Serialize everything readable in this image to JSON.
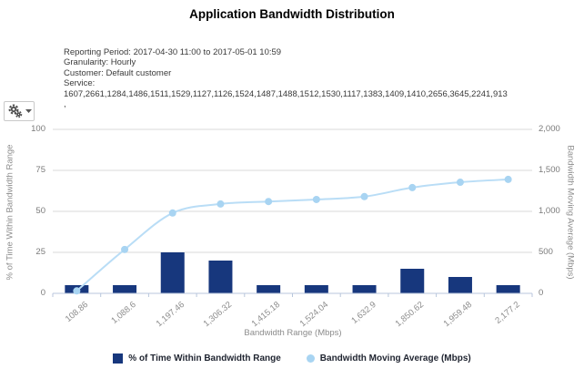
{
  "title": "Application Bandwidth Distribution",
  "info": {
    "reporting_period": "Reporting Period: 2017-04-30 11:00 to 2017-05-01 10:59",
    "granularity": "Granularity: Hourly",
    "customer": "Customer: Default customer",
    "service_label": "Service:",
    "service_values": "1607,2661,1284,1486,1511,1529,1127,1126,1524,1487,1488,1512,1530,1117,1383,1409,1410,2656,3645,2241,913",
    "service_trailing": ","
  },
  "toolbar": {
    "gear_icon": "settings-gears-dropdown"
  },
  "chart_data": {
    "type": "bar",
    "categories": [
      "108.86",
      "1,088.6",
      "1,197.46",
      "1,306.32",
      "1,415.18",
      "1,524.04",
      "1,632.9",
      "1,850.62",
      "1,959.48",
      "2,177.2"
    ],
    "series": [
      {
        "name": "% of Time Within Bandwidth Range",
        "type": "bar",
        "axis": "left",
        "values": [
          5,
          5,
          25,
          20,
          5,
          5,
          5,
          15,
          10,
          5
        ],
        "color": "#17377d"
      },
      {
        "name": "Bandwidth Moving Average (Mbps)",
        "type": "line",
        "axis": "right",
        "values": [
          30,
          535,
          980,
          1090,
          1120,
          1145,
          1180,
          1290,
          1355,
          1390
        ],
        "color": "#b9ddf6",
        "marker_color": "#a8d4f2"
      }
    ],
    "xlabel": "Bandwidth Range (Mbps)",
    "ylabel_left": "% of Time Within Bandwidth Range",
    "ylabel_right": "Bandwidth Moving Average (Mbps)",
    "left_ticks": [
      "100",
      "75",
      "50",
      "25",
      "0"
    ],
    "right_ticks": [
      "2,000",
      "1,500",
      "1,000",
      "500",
      "0"
    ],
    "ylim_left": [
      0,
      100
    ],
    "ylim_right": [
      0,
      2000
    ],
    "grid": true,
    "legend_position": "bottom",
    "colors": {
      "grid": "#d9d9d9",
      "axis": "#b8c6dc",
      "tick_text": "#7a7a7a"
    }
  }
}
